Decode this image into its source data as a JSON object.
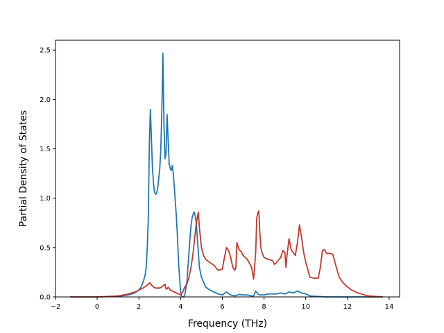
{
  "chart_data": {
    "type": "line",
    "title": "",
    "xlabel": "Frequency (THz)",
    "ylabel": "Partial Density of States",
    "xlim": [
      -2,
      14.5
    ],
    "ylim": [
      0,
      2.6
    ],
    "xticks": [
      -2,
      0,
      2,
      4,
      6,
      8,
      10,
      12,
      14
    ],
    "yticks": [
      0.0,
      0.5,
      1.0,
      1.5,
      2.0,
      2.5
    ],
    "xtick_labels": [
      "−2",
      "0",
      "2",
      "4",
      "6",
      "8",
      "10",
      "12",
      "14"
    ],
    "ytick_labels": [
      "0.0",
      "0.5",
      "1.0",
      "1.5",
      "2.0",
      "2.5"
    ],
    "grid": false,
    "legend": "none",
    "series": [
      {
        "color": "#1f77b4",
        "x": [
          -1.3,
          0.0,
          1.0,
          1.5,
          1.8,
          2.0,
          2.1,
          2.2,
          2.3,
          2.35,
          2.4,
          2.45,
          2.5,
          2.55,
          2.6,
          2.65,
          2.7,
          2.75,
          2.8,
          2.85,
          2.9,
          3.0,
          3.05,
          3.1,
          3.15,
          3.2,
          3.25,
          3.3,
          3.35,
          3.4,
          3.45,
          3.5,
          3.55,
          3.6,
          3.65,
          3.7,
          3.75,
          3.8,
          3.85,
          3.9,
          4.0,
          4.05,
          4.1,
          4.15,
          4.2,
          4.3,
          4.35,
          4.4,
          4.45,
          4.5,
          4.55,
          4.6,
          4.65,
          4.7,
          4.75,
          4.8,
          4.85,
          4.9,
          5.0,
          5.1,
          5.2,
          5.4,
          5.6,
          5.8,
          6.0,
          6.2,
          6.4,
          6.6,
          6.8,
          7.0,
          7.2,
          7.4,
          7.5,
          7.6,
          7.7,
          7.8,
          8.0,
          8.2,
          8.4,
          8.6,
          8.8,
          9.0,
          9.2,
          9.4,
          9.6,
          9.8,
          10.0,
          10.2,
          10.6,
          11.0,
          11.5,
          12.0,
          13.0,
          13.7
        ],
        "y": [
          0.0,
          0.0,
          0.005,
          0.02,
          0.04,
          0.07,
          0.1,
          0.15,
          0.22,
          0.3,
          0.5,
          0.8,
          1.55,
          1.9,
          1.6,
          1.3,
          1.15,
          1.06,
          1.04,
          1.05,
          1.1,
          1.3,
          1.5,
          1.9,
          2.47,
          1.75,
          1.4,
          1.45,
          1.85,
          1.6,
          1.35,
          1.3,
          1.28,
          1.33,
          1.25,
          1.1,
          0.95,
          0.8,
          0.6,
          0.35,
          0.05,
          0.01,
          0.0,
          0.0,
          0.02,
          0.15,
          0.3,
          0.45,
          0.6,
          0.72,
          0.8,
          0.84,
          0.86,
          0.82,
          0.75,
          0.6,
          0.45,
          0.3,
          0.2,
          0.15,
          0.1,
          0.07,
          0.05,
          0.03,
          0.02,
          0.05,
          0.02,
          0.01,
          0.025,
          0.02,
          0.02,
          0.01,
          0.01,
          0.06,
          0.03,
          0.02,
          0.02,
          0.03,
          0.03,
          0.03,
          0.04,
          0.03,
          0.05,
          0.04,
          0.06,
          0.04,
          0.03,
          0.01,
          0.005,
          0.0,
          0.0,
          0.0,
          0.0,
          0.0
        ]
      },
      {
        "color": "#c0392b",
        "x": [
          -1.3,
          0.0,
          0.5,
          1.0,
          1.5,
          1.8,
          2.0,
          2.2,
          2.4,
          2.5,
          2.55,
          2.6,
          2.7,
          2.8,
          3.0,
          3.1,
          3.2,
          3.25,
          3.3,
          3.35,
          3.4,
          3.5,
          3.6,
          3.7,
          3.8,
          3.9,
          4.0,
          4.1,
          4.2,
          4.3,
          4.4,
          4.5,
          4.6,
          4.7,
          4.75,
          4.8,
          4.85,
          4.9,
          5.0,
          5.1,
          5.2,
          5.4,
          5.6,
          5.8,
          6.0,
          6.1,
          6.2,
          6.3,
          6.4,
          6.5,
          6.6,
          6.65,
          6.7,
          6.8,
          6.9,
          7.0,
          7.2,
          7.4,
          7.5,
          7.6,
          7.65,
          7.7,
          7.75,
          7.8,
          7.85,
          7.9,
          8.0,
          8.2,
          8.4,
          8.5,
          8.6,
          8.8,
          8.9,
          9.0,
          9.05,
          9.1,
          9.2,
          9.3,
          9.4,
          9.5,
          9.6,
          9.7,
          9.8,
          9.9,
          10.0,
          10.2,
          10.4,
          10.5,
          10.6,
          10.7,
          10.8,
          10.9,
          11.0,
          11.2,
          11.3,
          11.4,
          11.6,
          11.8,
          12.0,
          12.2,
          12.5,
          13.0,
          13.7
        ],
        "y": [
          0.0,
          0.0,
          0.005,
          0.01,
          0.03,
          0.05,
          0.07,
          0.09,
          0.12,
          0.14,
          0.14,
          0.12,
          0.1,
          0.09,
          0.09,
          0.1,
          0.12,
          0.13,
          0.08,
          0.08,
          0.1,
          0.07,
          0.06,
          0.05,
          0.04,
          0.03,
          0.02,
          0.05,
          0.1,
          0.13,
          0.2,
          0.3,
          0.45,
          0.65,
          0.75,
          0.8,
          0.86,
          0.7,
          0.5,
          0.42,
          0.38,
          0.35,
          0.32,
          0.27,
          0.28,
          0.4,
          0.5,
          0.47,
          0.4,
          0.3,
          0.27,
          0.3,
          0.55,
          0.48,
          0.46,
          0.42,
          0.38,
          0.3,
          0.18,
          0.45,
          0.8,
          0.85,
          0.87,
          0.65,
          0.5,
          0.45,
          0.4,
          0.38,
          0.37,
          0.33,
          0.35,
          0.4,
          0.47,
          0.45,
          0.3,
          0.42,
          0.59,
          0.48,
          0.45,
          0.42,
          0.55,
          0.73,
          0.6,
          0.45,
          0.35,
          0.2,
          0.19,
          0.19,
          0.19,
          0.3,
          0.47,
          0.48,
          0.44,
          0.44,
          0.43,
          0.35,
          0.2,
          0.14,
          0.1,
          0.07,
          0.04,
          0.01,
          0.0
        ]
      }
    ]
  }
}
